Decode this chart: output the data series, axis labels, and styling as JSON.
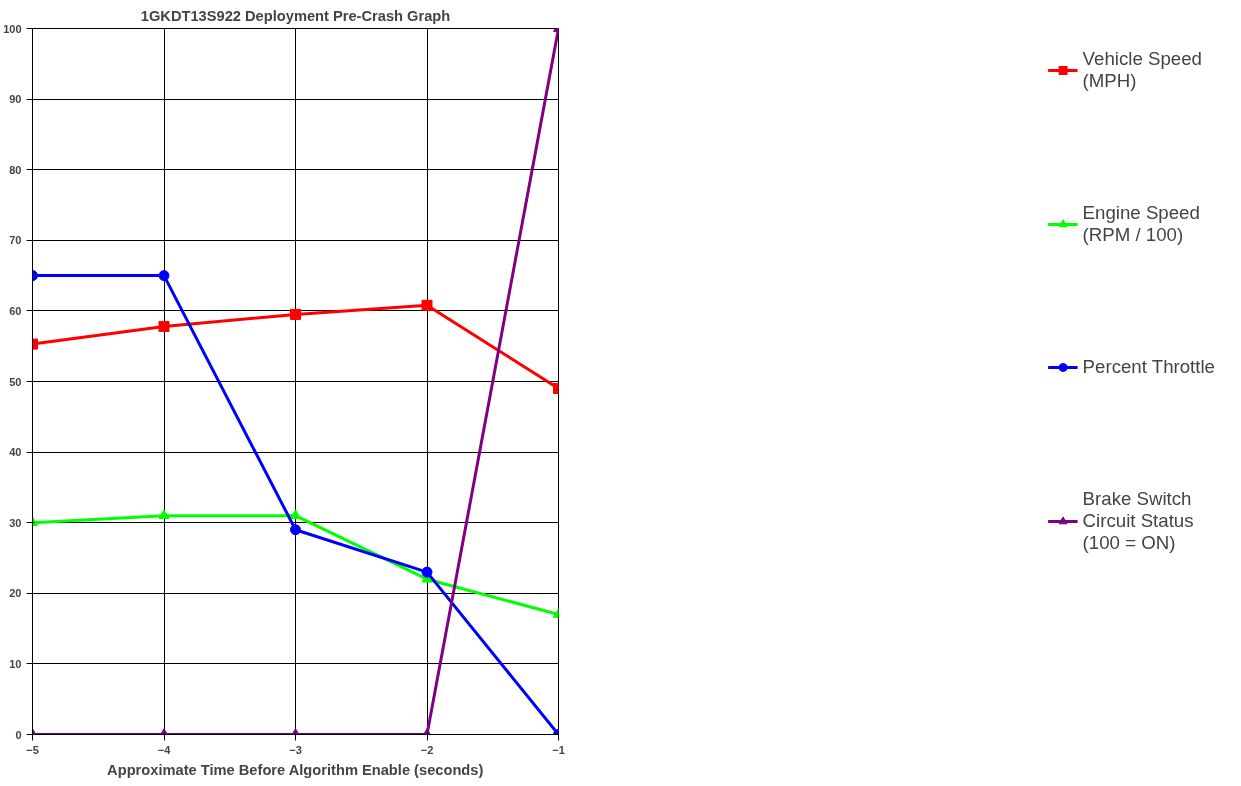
{
  "chart_data": {
    "type": "line",
    "title": "1GKDT13S922 Deployment Pre-Crash Graph",
    "xlabel": "Approximate Time Before Algorithm Enable (seconds)",
    "x": [
      -5,
      -4,
      -3,
      -2,
      -1
    ],
    "series": [
      {
        "name": "Vehicle Speed\n(MPH)",
        "color": "#ff0000",
        "marker": "square",
        "values": [
          55.3,
          57.8,
          59.5,
          60.8,
          49
        ]
      },
      {
        "name": "Engine Speed\n(RPM / 100)",
        "color": "#00ff00",
        "marker": "triangle",
        "values": [
          30,
          31,
          31,
          22,
          17
        ]
      },
      {
        "name": "Percent Throttle",
        "color": "#0000ff",
        "marker": "circle",
        "values": [
          65,
          65,
          29,
          23,
          0
        ]
      },
      {
        "name": "Brake Switch\nCircuit Status\n(100 = ON)",
        "color": "#800080",
        "marker": "triangle",
        "values": [
          0,
          0,
          0,
          0,
          100
        ]
      }
    ],
    "xlim": [
      -5,
      -1
    ],
    "xticks": [
      -5,
      -4,
      -3,
      -2,
      -1
    ],
    "ylim": [
      0,
      100
    ],
    "yticks": [
      0,
      10,
      20,
      30,
      40,
      50,
      60,
      70,
      80,
      90,
      100
    ],
    "grid": true,
    "legend": "right",
    "line_style": "solid"
  }
}
